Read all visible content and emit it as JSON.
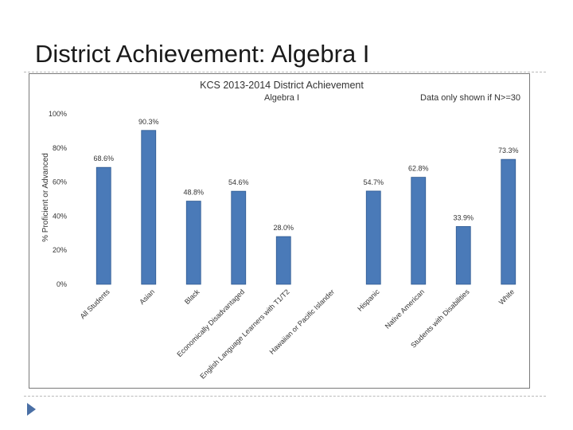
{
  "slide": {
    "title": "District Achievement: Algebra I"
  },
  "colors": {
    "bar": "#4a7ab8",
    "bar_stroke": "#2f5a92",
    "text": "#333333"
  },
  "chart_data": {
    "type": "bar",
    "title": "KCS 2013-2014 District Achievement",
    "subtitle": "Algebra I",
    "note": "Data only shown if N>=30",
    "ylabel": "% Proficient or Advanced",
    "xlabel": "",
    "ylim": [
      0,
      100
    ],
    "y_ticks": [
      "0%",
      "20%",
      "40%",
      "60%",
      "80%",
      "100%"
    ],
    "y_tick_values": [
      0,
      20,
      40,
      60,
      80,
      100
    ],
    "grid": false,
    "legend": "none",
    "categories": [
      "All Students",
      "Asian",
      "Black",
      "Economically Disadvantaged",
      "English Language Learners with T1/T2",
      "Hawaiian or Pacific Islander",
      "Hispanic",
      "Native American",
      "Students with Disabilities",
      "White"
    ],
    "values": [
      68.6,
      90.3,
      48.8,
      54.6,
      28.0,
      null,
      54.7,
      62.8,
      33.9,
      73.3
    ],
    "data_labels": [
      "68.6%",
      "90.3%",
      "48.8%",
      "54.6%",
      "28.0%",
      "",
      "54.7%",
      "62.8%",
      "33.9%",
      "73.3%"
    ]
  }
}
